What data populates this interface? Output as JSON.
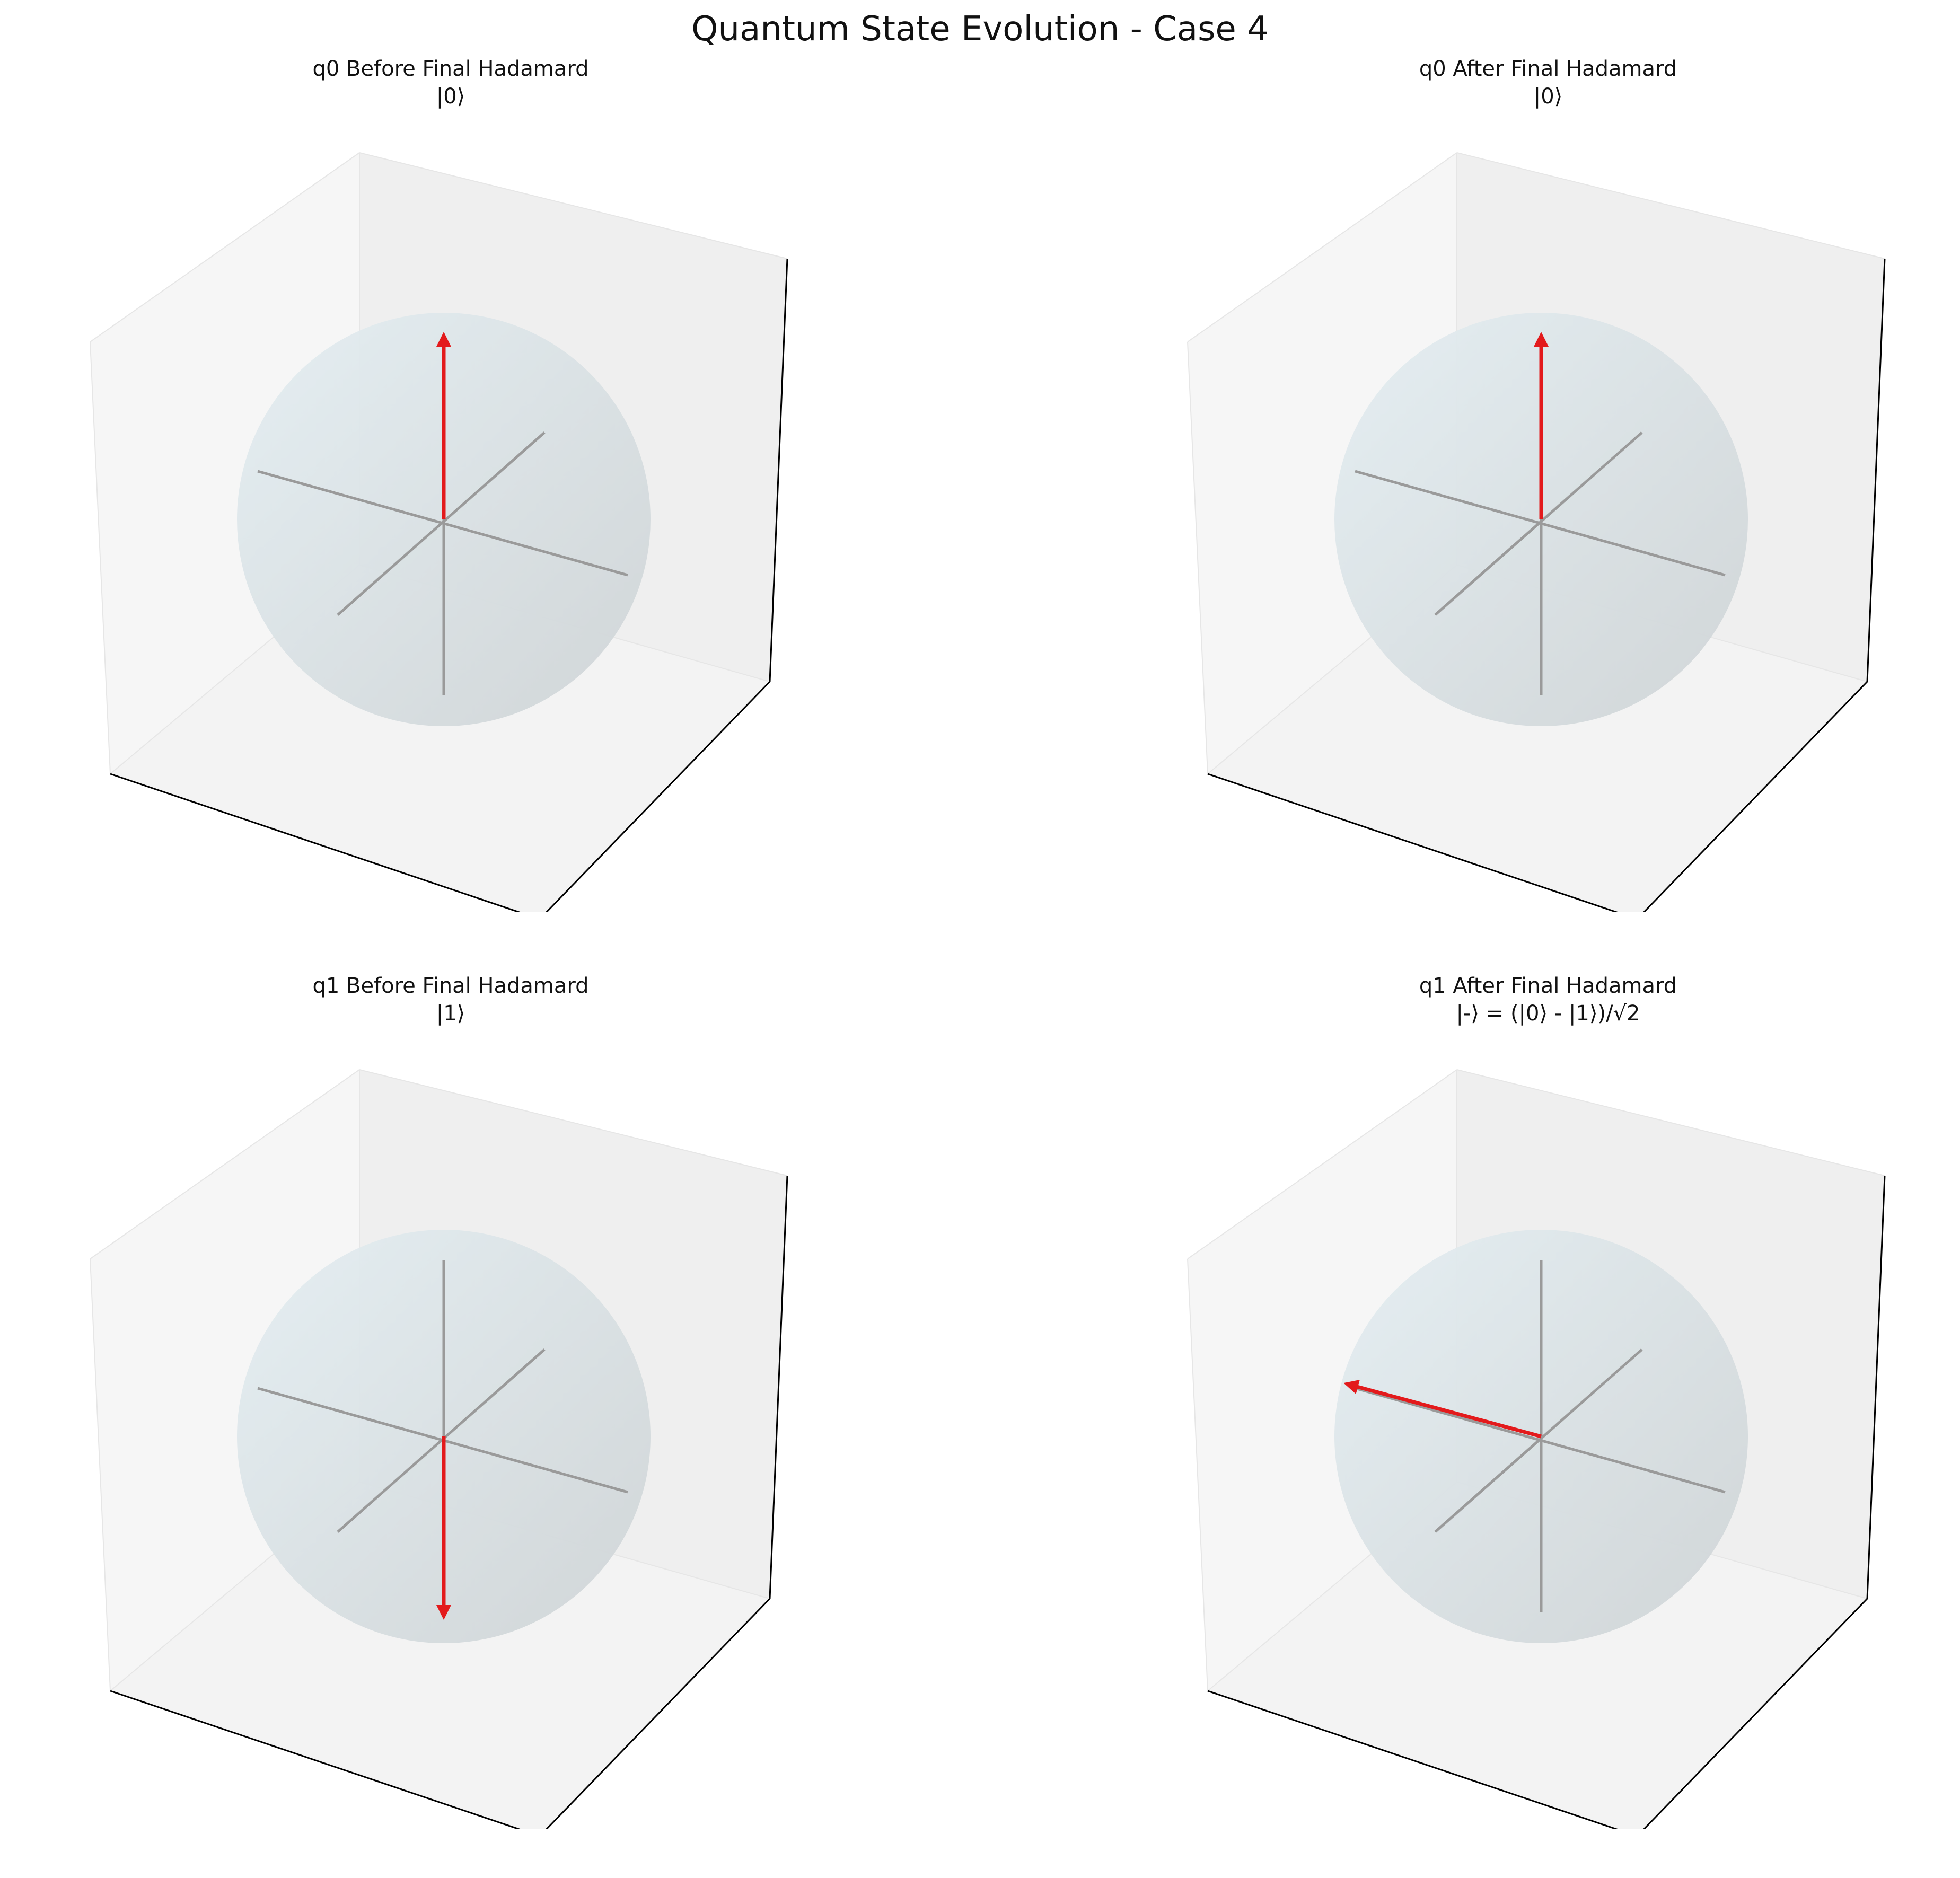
{
  "figure": {
    "title": "Quantum State Evolution - Case 4"
  },
  "panels": [
    {
      "title": "q0 Before Final Hadamard",
      "state_label": "|0⟩",
      "vector": "+z"
    },
    {
      "title": "q0 After Final Hadamard",
      "state_label": "|0⟩",
      "vector": "+z"
    },
    {
      "title": "q1 Before Final Hadamard",
      "state_label": "|1⟩",
      "vector": "-z"
    },
    {
      "title": "q1 After Final Hadamard",
      "state_label": "|-⟩ = (|0⟩ - |1⟩)/√2",
      "vector": "-x"
    }
  ],
  "colors": {
    "state_vector": "#e31a1c",
    "axes": "#9a9a9a",
    "sphere_light": "#e4eef2",
    "sphere_dark": "#cfd4d6",
    "pane_left": "#f6f6f6",
    "pane_right": "#efefef",
    "pane_floor": "#f3f3f3"
  }
}
